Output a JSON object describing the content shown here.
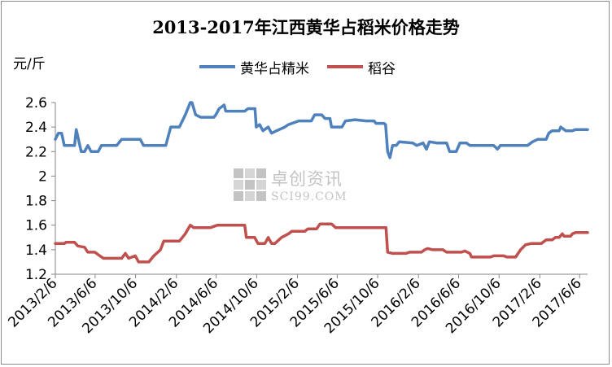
{
  "chart_data": {
    "type": "line",
    "title": "2013-2017年江西黄华占稻米价格走势",
    "ylabel": "元/斤",
    "ylim": [
      1.2,
      2.6
    ],
    "yticks": [
      "2.6",
      "2.4",
      "2.2",
      "2",
      "1.8",
      "1.6",
      "1.4",
      "1.2"
    ],
    "ytick_values": [
      2.6,
      2.4,
      2.2,
      2.0,
      1.8,
      1.6,
      1.4,
      1.2
    ],
    "xlim": [
      "2013-02-06",
      "2017-06-30"
    ],
    "xticks": [
      "2013/2/6",
      "2013/6/6",
      "2013/10/6",
      "2014/2/6",
      "2014/6/6",
      "2014/10/6",
      "2015/2/6",
      "2015/6/6",
      "2015/10/6",
      "2016/2/6",
      "2016/6/6",
      "2016/10/6",
      "2017/2/6",
      "2017/6/6"
    ],
    "xtick_dates": [
      "2013-02-06",
      "2013-06-06",
      "2013-10-06",
      "2014-02-06",
      "2014-06-06",
      "2014-10-06",
      "2015-02-06",
      "2015-06-06",
      "2015-10-06",
      "2016-02-06",
      "2016-06-06",
      "2016-10-06",
      "2017-02-06",
      "2017-06-06"
    ],
    "grid": false,
    "legend_position": "top",
    "series": [
      {
        "name": "黄华占精米",
        "color": "#4f81bd",
        "points": [
          [
            "2013-02-06",
            2.3
          ],
          [
            "2013-02-15",
            2.35
          ],
          [
            "2013-02-25",
            2.35
          ],
          [
            "2013-03-05",
            2.25
          ],
          [
            "2013-04-05",
            2.25
          ],
          [
            "2013-04-10",
            2.38
          ],
          [
            "2013-04-25",
            2.2
          ],
          [
            "2013-05-05",
            2.2
          ],
          [
            "2013-05-15",
            2.25
          ],
          [
            "2013-05-25",
            2.2
          ],
          [
            "2013-06-15",
            2.2
          ],
          [
            "2013-06-25",
            2.25
          ],
          [
            "2013-08-10",
            2.25
          ],
          [
            "2013-08-25",
            2.3
          ],
          [
            "2013-09-25",
            2.3
          ],
          [
            "2013-10-20",
            2.3
          ],
          [
            "2013-10-30",
            2.25
          ],
          [
            "2013-12-20",
            2.25
          ],
          [
            "2014-01-05",
            2.25
          ],
          [
            "2014-01-20",
            2.4
          ],
          [
            "2014-02-15",
            2.4
          ],
          [
            "2014-03-05",
            2.5
          ],
          [
            "2014-03-20",
            2.6
          ],
          [
            "2014-03-25",
            2.6
          ],
          [
            "2014-04-05",
            2.5
          ],
          [
            "2014-04-20",
            2.48
          ],
          [
            "2014-05-30",
            2.48
          ],
          [
            "2014-06-05",
            2.5
          ],
          [
            "2014-06-15",
            2.55
          ],
          [
            "2014-06-30",
            2.58
          ],
          [
            "2014-07-05",
            2.53
          ],
          [
            "2014-08-31",
            2.53
          ],
          [
            "2014-09-10",
            2.55
          ],
          [
            "2014-10-01",
            2.55
          ],
          [
            "2014-10-05",
            2.4
          ],
          [
            "2014-10-15",
            2.42
          ],
          [
            "2014-10-25",
            2.37
          ],
          [
            "2014-11-10",
            2.4
          ],
          [
            "2014-11-20",
            2.35
          ],
          [
            "2014-12-05",
            2.37
          ],
          [
            "2014-12-30",
            2.4
          ],
          [
            "2015-01-10",
            2.42
          ],
          [
            "2015-02-10",
            2.45
          ],
          [
            "2015-03-20",
            2.45
          ],
          [
            "2015-03-30",
            2.5
          ],
          [
            "2015-04-20",
            2.5
          ],
          [
            "2015-04-30",
            2.47
          ],
          [
            "2015-05-15",
            2.47
          ],
          [
            "2015-05-20",
            2.4
          ],
          [
            "2015-06-20",
            2.4
          ],
          [
            "2015-07-01",
            2.45
          ],
          [
            "2015-07-30",
            2.46
          ],
          [
            "2015-09-01",
            2.45
          ],
          [
            "2015-09-25",
            2.45
          ],
          [
            "2015-10-01",
            2.43
          ],
          [
            "2015-10-25",
            2.43
          ],
          [
            "2015-10-30",
            2.42
          ],
          [
            "2015-11-05",
            2.2
          ],
          [
            "2015-11-12",
            2.15
          ],
          [
            "2015-11-20",
            2.25
          ],
          [
            "2015-12-01",
            2.25
          ],
          [
            "2015-12-10",
            2.28
          ],
          [
            "2016-01-20",
            2.27
          ],
          [
            "2016-02-01",
            2.25
          ],
          [
            "2016-02-20",
            2.27
          ],
          [
            "2016-03-01",
            2.22
          ],
          [
            "2016-03-10",
            2.28
          ],
          [
            "2016-04-01",
            2.27
          ],
          [
            "2016-04-20",
            2.27
          ],
          [
            "2016-05-01",
            2.27
          ],
          [
            "2016-05-10",
            2.2
          ],
          [
            "2016-05-30",
            2.2
          ],
          [
            "2016-06-10",
            2.27
          ],
          [
            "2016-06-30",
            2.27
          ],
          [
            "2016-07-10",
            2.25
          ],
          [
            "2016-09-20",
            2.25
          ],
          [
            "2016-10-01",
            2.22
          ],
          [
            "2016-10-10",
            2.25
          ],
          [
            "2016-12-31",
            2.25
          ],
          [
            "2017-01-15",
            2.28
          ],
          [
            "2017-01-31",
            2.3
          ],
          [
            "2017-02-25",
            2.3
          ],
          [
            "2017-03-05",
            2.35
          ],
          [
            "2017-03-15",
            2.37
          ],
          [
            "2017-04-05",
            2.37
          ],
          [
            "2017-04-10",
            2.4
          ],
          [
            "2017-04-25",
            2.37
          ],
          [
            "2017-05-15",
            2.37
          ],
          [
            "2017-05-25",
            2.38
          ],
          [
            "2017-06-30",
            2.38
          ]
        ]
      },
      {
        "name": "稻谷",
        "color": "#c0504d",
        "points": [
          [
            "2013-02-06",
            1.45
          ],
          [
            "2013-03-05",
            1.45
          ],
          [
            "2013-03-10",
            1.46
          ],
          [
            "2013-04-05",
            1.46
          ],
          [
            "2013-04-15",
            1.43
          ],
          [
            "2013-05-05",
            1.42
          ],
          [
            "2013-05-15",
            1.38
          ],
          [
            "2013-06-05",
            1.38
          ],
          [
            "2013-06-20",
            1.35
          ],
          [
            "2013-07-01",
            1.33
          ],
          [
            "2013-08-25",
            1.33
          ],
          [
            "2013-09-05",
            1.37
          ],
          [
            "2013-09-15",
            1.33
          ],
          [
            "2013-10-05",
            1.35
          ],
          [
            "2013-10-15",
            1.3
          ],
          [
            "2013-11-15",
            1.3
          ],
          [
            "2013-11-30",
            1.35
          ],
          [
            "2013-12-20",
            1.4
          ],
          [
            "2013-12-30",
            1.47
          ],
          [
            "2014-02-15",
            1.47
          ],
          [
            "2014-03-05",
            1.53
          ],
          [
            "2014-03-20",
            1.6
          ],
          [
            "2014-03-30",
            1.58
          ],
          [
            "2014-05-20",
            1.58
          ],
          [
            "2014-06-10",
            1.6
          ],
          [
            "2014-08-31",
            1.6
          ],
          [
            "2014-09-05",
            1.5
          ],
          [
            "2014-09-30",
            1.5
          ],
          [
            "2014-10-10",
            1.45
          ],
          [
            "2014-10-31",
            1.45
          ],
          [
            "2014-11-10",
            1.5
          ],
          [
            "2014-11-20",
            1.45
          ],
          [
            "2014-11-30",
            1.45
          ],
          [
            "2014-12-20",
            1.5
          ],
          [
            "2015-01-10",
            1.53
          ],
          [
            "2015-01-20",
            1.55
          ],
          [
            "2015-02-28",
            1.55
          ],
          [
            "2015-03-10",
            1.57
          ],
          [
            "2015-04-05",
            1.57
          ],
          [
            "2015-04-15",
            1.61
          ],
          [
            "2015-05-20",
            1.61
          ],
          [
            "2015-06-01",
            1.58
          ],
          [
            "2015-10-31",
            1.58
          ],
          [
            "2015-11-05",
            1.38
          ],
          [
            "2015-11-20",
            1.37
          ],
          [
            "2015-12-31",
            1.37
          ],
          [
            "2016-01-10",
            1.38
          ],
          [
            "2016-02-15",
            1.38
          ],
          [
            "2016-02-25",
            1.4
          ],
          [
            "2016-03-05",
            1.41
          ],
          [
            "2016-03-20",
            1.4
          ],
          [
            "2016-04-20",
            1.4
          ],
          [
            "2016-05-01",
            1.38
          ],
          [
            "2016-06-15",
            1.38
          ],
          [
            "2016-06-25",
            1.39
          ],
          [
            "2016-07-10",
            1.37
          ],
          [
            "2016-07-15",
            1.34
          ],
          [
            "2016-09-10",
            1.34
          ],
          [
            "2016-09-20",
            1.35
          ],
          [
            "2016-10-20",
            1.35
          ],
          [
            "2016-10-30",
            1.34
          ],
          [
            "2016-11-25",
            1.34
          ],
          [
            "2016-12-10",
            1.4
          ],
          [
            "2016-12-25",
            1.44
          ],
          [
            "2017-01-10",
            1.45
          ],
          [
            "2017-02-10",
            1.45
          ],
          [
            "2017-02-25",
            1.48
          ],
          [
            "2017-03-15",
            1.48
          ],
          [
            "2017-03-25",
            1.5
          ],
          [
            "2017-04-05",
            1.5
          ],
          [
            "2017-04-15",
            1.53
          ],
          [
            "2017-04-20",
            1.51
          ],
          [
            "2017-05-10",
            1.51
          ],
          [
            "2017-05-15",
            1.53
          ],
          [
            "2017-05-25",
            1.54
          ],
          [
            "2017-06-30",
            1.54
          ]
        ]
      }
    ]
  },
  "watermark": {
    "text_cn": "卓创资讯",
    "text_en": "SCI99.COM"
  }
}
